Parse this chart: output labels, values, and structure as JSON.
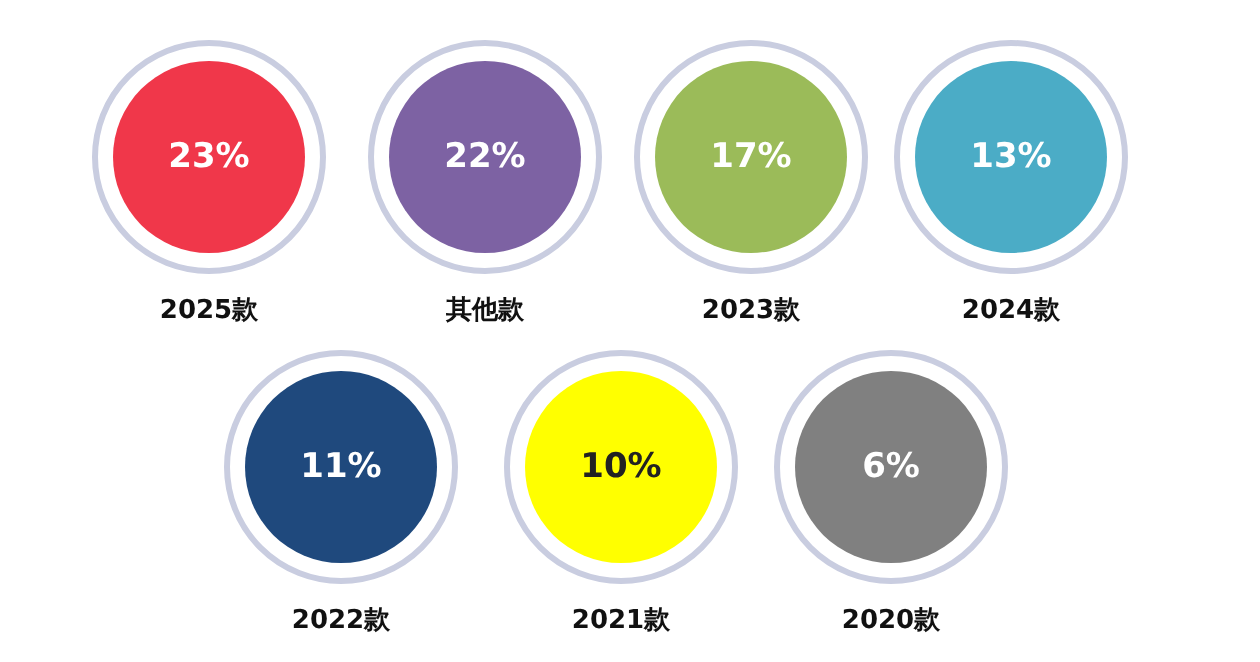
{
  "chart_data": {
    "type": "other",
    "categories": [
      "2025款",
      "其他款",
      "2023款",
      "2024款",
      "2022款",
      "2021款",
      "2020款"
    ],
    "values": [
      23,
      22,
      17,
      13,
      11,
      10,
      6
    ],
    "value_labels": [
      "23%",
      "22%",
      "17%",
      "13%",
      "11%",
      "10%",
      "6%"
    ],
    "colors": [
      "#f0374a",
      "#7d62a3",
      "#9bbb59",
      "#4bacc6",
      "#1f497d",
      "#ffff00",
      "#808080"
    ]
  }
}
